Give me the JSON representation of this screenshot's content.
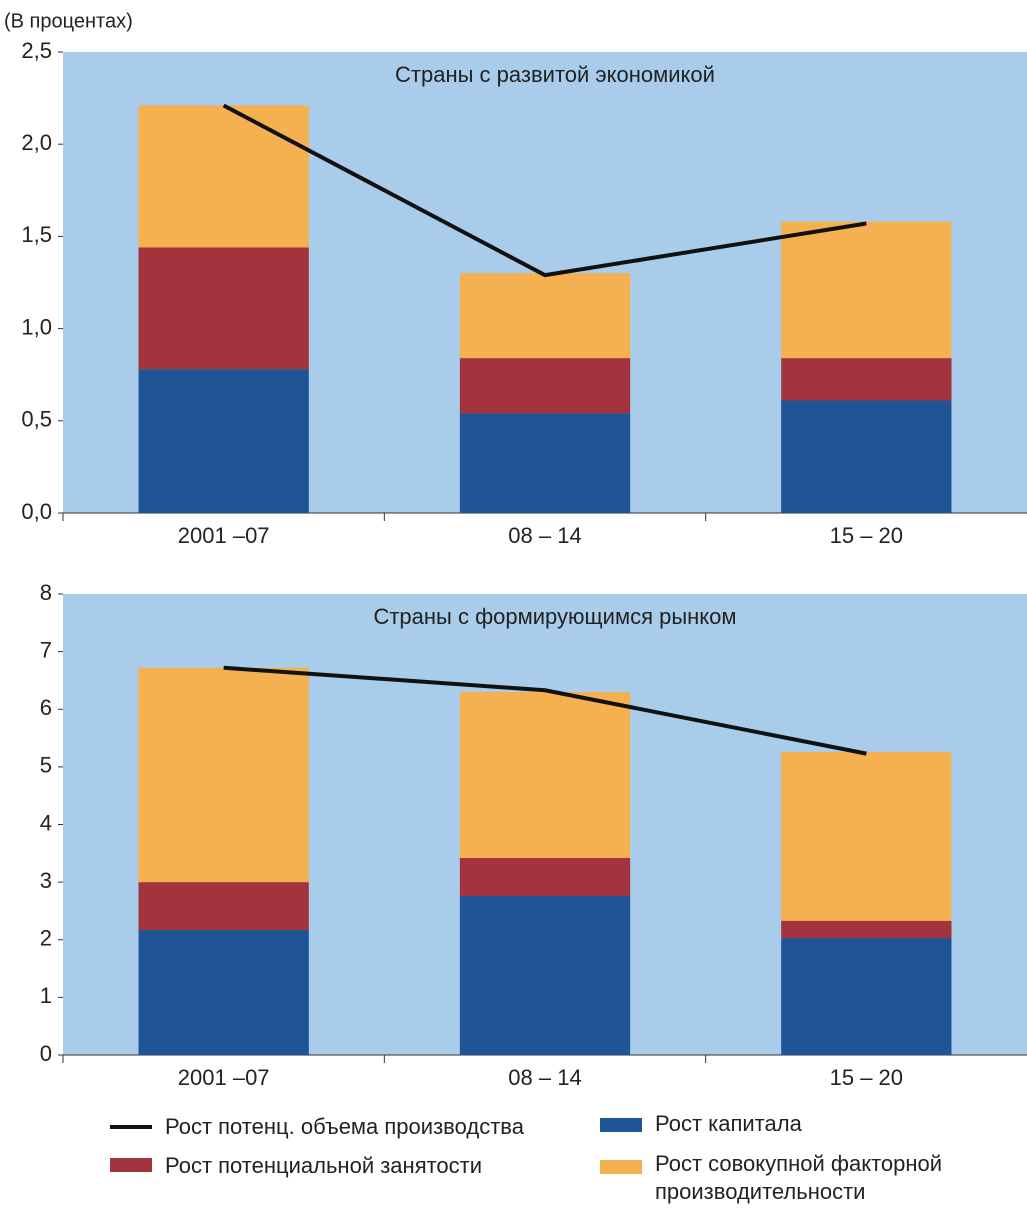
{
  "chart_data": [
    {
      "type": "bar",
      "stacked": true,
      "y_label": "(В процентах)",
      "title": "Страны с развитой экономикой",
      "categories": [
        "2001 –07",
        "08 – 14",
        "15 – 20"
      ],
      "ylim": [
        0,
        2.5
      ],
      "yticks": [
        {
          "value": 0,
          "label": "0,0"
        },
        {
          "value": 0.5,
          "label": "0,5"
        },
        {
          "value": 1,
          "label": "1,0"
        },
        {
          "value": 1.5,
          "label": "1,5"
        },
        {
          "value": 2,
          "label": "2,0"
        },
        {
          "value": 2.5,
          "label": "2,5"
        }
      ],
      "background": "#a8cce9",
      "series": [
        {
          "name": "Рост потенц. объема производства",
          "type": "line",
          "color": "#111111",
          "values": [
            2.21,
            1.29,
            1.57
          ]
        },
        {
          "name": "Рост потенциальной занятости",
          "color": "#a3333d",
          "values": [
            0.66,
            0.3,
            0.23
          ]
        },
        {
          "name": "Рост капитала",
          "color": "#1f5597",
          "values": [
            0.78,
            0.54,
            0.61
          ]
        },
        {
          "name": "Рост совокупной факторной производительности",
          "color": "#f5b04f",
          "values": [
            0.77,
            0.46,
            0.74
          ]
        }
      ]
    },
    {
      "type": "bar",
      "stacked": true,
      "title": "Страны с формирующимся рынком",
      "categories": [
        "2001 –07",
        "08 – 14",
        "15 – 20"
      ],
      "ylim": [
        0,
        8
      ],
      "yticks": [
        0,
        1,
        2,
        3,
        4,
        5,
        6,
        7,
        8
      ],
      "background": "#a8cce9",
      "series": [
        {
          "type": "line",
          "color": "#111111",
          "values": [
            6.72,
            6.33,
            5.23
          ]
        },
        {
          "color": "#a3333d",
          "values": [
            0.83,
            0.66,
            0.3
          ]
        },
        {
          "color": "#1f5597",
          "values": [
            2.17,
            2.76,
            2.03
          ]
        },
        {
          "color": "#f5b04f",
          "values": [
            3.72,
            2.88,
            2.93
          ]
        }
      ]
    }
  ]
}
